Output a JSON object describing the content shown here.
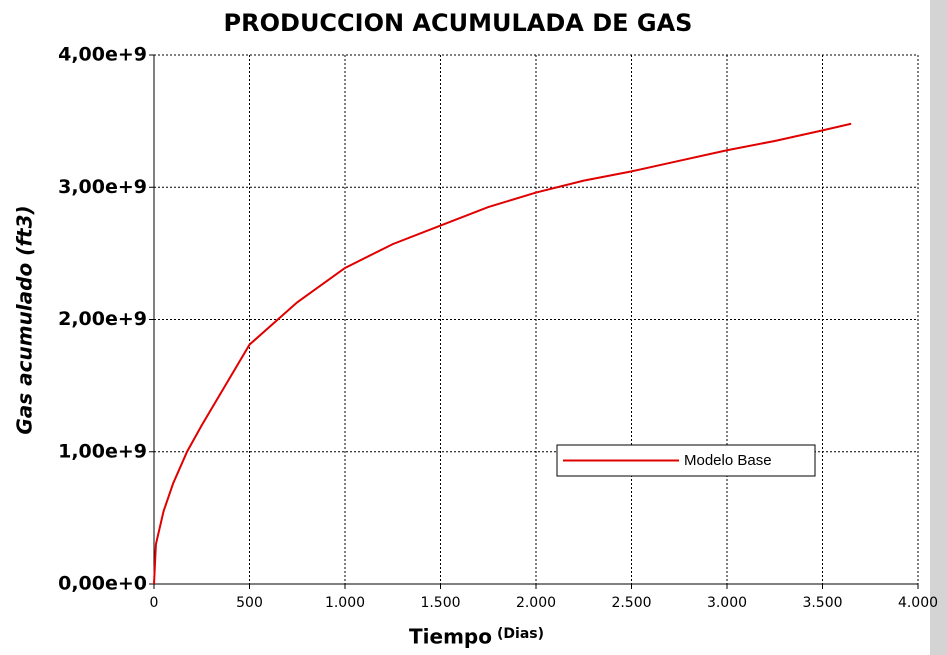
{
  "chart_data": {
    "type": "line",
    "title": "PRODUCCION ACUMULADA DE GAS",
    "xlabel": "Tiempo",
    "xlabel_unit": "(Dias)",
    "ylabel": "Gas acumulado (ft3)",
    "x": [
      0,
      10,
      50,
      100,
      173,
      250,
      500,
      750,
      1000,
      1250,
      1500,
      1750,
      2000,
      2250,
      2500,
      2750,
      3000,
      3250,
      3500,
      3650
    ],
    "series": [
      {
        "name": "Modelo Base",
        "color": "#e00000",
        "values": [
          0,
          300000000,
          550000000,
          760000000,
          1000000000,
          1200000000,
          1810000000,
          2130000000,
          2390000000,
          2570000000,
          2710000000,
          2850000000,
          2960000000,
          3050000000,
          3120000000,
          3200000000,
          3280000000,
          3350000000,
          3430000000,
          3480000000
        ]
      }
    ],
    "xlim": [
      0,
      4000
    ],
    "ylim": [
      0,
      4000000000
    ],
    "xticks": [
      0,
      500,
      {
        "value": 1000,
        "label": "1.000"
      },
      {
        "value": 1500,
        "label": "1.500"
      },
      {
        "value": 2000,
        "label": "2.000"
      },
      {
        "value": 2500,
        "label": "2.500"
      },
      {
        "value": 3000,
        "label": "3.000"
      },
      {
        "value": 3500,
        "label": "3.500"
      },
      {
        "value": 4000,
        "label": "4.000"
      }
    ],
    "yticks": [
      {
        "value": 0,
        "label": "0,00e+0"
      },
      {
        "value": 1000000000,
        "label": "1,00e+9"
      },
      {
        "value": 2000000000,
        "label": "2,00e+9"
      },
      {
        "value": 3000000000,
        "label": "3,00e+9"
      },
      {
        "value": 4000000000,
        "label": "4,00e+9"
      }
    ],
    "grid": true,
    "legend": "lower right"
  }
}
